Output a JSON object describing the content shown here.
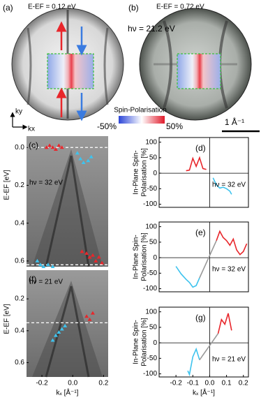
{
  "figure": {
    "panel_a": {
      "label": "(a)",
      "energy": "E-EF = 0.12 eV"
    },
    "panel_b": {
      "label": "(b)",
      "energy": "E-EF = 0.72 eV"
    },
    "photon_energy": "hν = 21.2 eV",
    "colorbar": {
      "title": "Spin-Polarisation",
      "min_label": "-50%",
      "max_label": "50%"
    },
    "scale_bar": "1 Å⁻¹",
    "axis_ky": "ky",
    "axis_kx": "kx"
  },
  "chart_data": [
    {
      "type": "scatter",
      "panel": "(c)",
      "annotation": "hν = 32 eV",
      "ylabel": "E-EF [eV]",
      "y_inverted": true,
      "xlim": [
        -0.3,
        0.23
      ],
      "ylim": [
        -0.06,
        0.63
      ],
      "yticks": [
        {
          "value": 0,
          "label": "0.0"
        },
        0.2,
        0.4,
        0.6
      ],
      "reference_lines": [
        0,
        0.62
      ],
      "series": [
        {
          "color": "#e8262b",
          "x": [
            -0.17,
            -0.15,
            -0.13,
            -0.11,
            -0.09,
            -0.07,
            0.06,
            0.09,
            0.11,
            0.13,
            0.15,
            0.17,
            0.19
          ],
          "values": [
            0.0,
            -0.01,
            0.0,
            0.01,
            -0.01,
            0.0,
            0.55,
            0.56,
            0.58,
            0.57,
            0.6,
            0.58,
            0.61
          ]
        },
        {
          "color": "#3ec3ee",
          "x": [
            0.03,
            0.05,
            0.07,
            0.1,
            0.12,
            -0.23,
            -0.21,
            -0.19,
            -0.16,
            -0.13
          ],
          "values": [
            0.03,
            0.06,
            0.08,
            0.07,
            0.05,
            0.6,
            0.62,
            0.63,
            0.62,
            0.63
          ]
        }
      ]
    },
    {
      "type": "scatter",
      "panel": "(f)",
      "annotation": "hν = 21 eV",
      "ylabel": "E-EF [eV]",
      "xlabel": "kₓ [Å⁻¹]",
      "y_inverted": true,
      "xlim": [
        -0.3,
        0.23
      ],
      "ylim": [
        0.02,
        0.69
      ],
      "yticks": [
        0.2,
        0.4,
        0.6
      ],
      "xticks": [
        -0.2,
        {
          "value": 0,
          "label": "0.0"
        },
        0.2
      ],
      "reference_lines": [
        0.35
      ],
      "series": [
        {
          "color": "#e8262b",
          "x": [
            0.09,
            0.11,
            0.13
          ],
          "values": [
            0.31,
            0.33,
            0.29
          ]
        },
        {
          "color": "#3ec3ee",
          "x": [
            -0.13,
            -0.11,
            -0.09,
            -0.07,
            -0.05
          ],
          "values": [
            0.46,
            0.43,
            0.41,
            0.39,
            0.37
          ]
        }
      ]
    },
    {
      "type": "line",
      "panel": "(d)",
      "annotation": "hν = 32 eV",
      "ylabel": [
        "In-Plane Spin-",
        "Polarisation [%]"
      ],
      "xlim": [
        -0.3,
        0.23
      ],
      "ylim": [
        -110,
        115
      ],
      "yticks": [
        100,
        50,
        0,
        -50,
        -100
      ],
      "series": [
        {
          "color": "#e8262b",
          "x": [
            -0.14,
            -0.12,
            -0.1,
            -0.08,
            -0.06,
            -0.04,
            -0.02
          ],
          "values": [
            8,
            10,
            48,
            22,
            50,
            15,
            12
          ]
        },
        {
          "color": "#3ec3ee",
          "x": [
            0.02,
            0.04,
            0.06,
            0.08,
            0.1,
            0.12,
            0.13
          ],
          "values": [
            -15,
            -38,
            -48,
            -45,
            -50,
            -58,
            -68
          ]
        }
      ]
    },
    {
      "type": "line",
      "panel": "(e)",
      "annotation": "hν = 32 eV",
      "ylabel": [
        "In-Plane Spin-",
        "Polarisation [%]"
      ],
      "xlim": [
        -0.3,
        0.23
      ],
      "ylim": [
        -110,
        115
      ],
      "yticks": [
        100,
        50,
        0,
        -50,
        -100
      ],
      "series": [
        {
          "color": "#3ec3ee",
          "x": [
            -0.2,
            -0.17,
            -0.14,
            -0.12,
            -0.1,
            -0.08,
            -0.06
          ],
          "values": [
            -28,
            -52,
            -70,
            -80,
            -95,
            -90,
            -65
          ]
        },
        {
          "color": "#999999",
          "x": [
            -0.06,
            0.04
          ],
          "values": [
            -65,
            55
          ]
        },
        {
          "color": "#e8262b",
          "x": [
            0.04,
            0.06,
            0.08,
            0.1,
            0.12,
            0.14,
            0.16,
            0.18,
            0.2,
            0.22
          ],
          "values": [
            55,
            85,
            65,
            55,
            40,
            60,
            25,
            10,
            20,
            45
          ]
        }
      ]
    },
    {
      "type": "line",
      "panel": "(g)",
      "annotation": "hν = 21 eV",
      "ylabel": [
        "In-Plane Spin-",
        "Polarisation [%]"
      ],
      "xlabel": "kₓ [Å⁻¹]",
      "xlim": [
        -0.3,
        0.23
      ],
      "ylim": [
        -110,
        115
      ],
      "yticks": [
        100,
        50,
        0,
        -50,
        -100
      ],
      "xticks": [
        -0.2,
        -0.1,
        {
          "value": 0,
          "label": "0.0"
        },
        0.1,
        0.2
      ],
      "series": [
        {
          "color": "#3ec3ee",
          "x": [
            -0.13,
            -0.12,
            -0.1,
            -0.08,
            -0.06
          ],
          "values": [
            -90,
            -102,
            -45,
            -20,
            -55
          ]
        },
        {
          "color": "#999999",
          "x": [
            -0.06,
            0.05
          ],
          "values": [
            -55,
            30
          ]
        },
        {
          "color": "#e8262b",
          "x": [
            0.05,
            0.07,
            0.09,
            0.11,
            0.13
          ],
          "values": [
            30,
            75,
            60,
            95,
            40
          ]
        }
      ]
    }
  ]
}
